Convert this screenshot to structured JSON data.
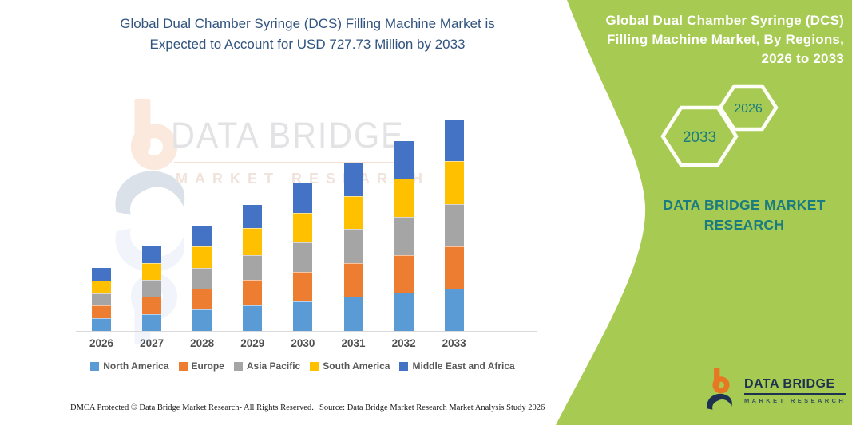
{
  "header": {
    "title_lines": [
      "Global Dual Chamber Syringe (DCS) Filling Machine Market is",
      "Expected to Account for USD 727.73 Million by 2033"
    ]
  },
  "right_panel": {
    "title_lines": [
      "Global Dual Chamber Syringe (DCS)",
      "Filling Machine Market, By Regions,",
      "2026 to 2033"
    ],
    "hexagons": {
      "back_label": "2033",
      "front_label": "2026"
    },
    "brand_text_lines": [
      "DATA BRIDGE MARKET",
      "RESEARCH"
    ]
  },
  "watermark": {
    "title": "DATA BRIDGE",
    "subtitle": "MARKET RESEARCH"
  },
  "logo": {
    "title": "DATA BRIDGE",
    "subtitle": "MARKET RESEARCH"
  },
  "footer": {
    "dmca": "DMCA Protected © Data Bridge Market Research-  All Rights Reserved.",
    "source": "Source: Data Bridge Market Research  Market Analysis Study 2026"
  },
  "colors": {
    "panel_green": "#A6CA52",
    "brand_teal": "#1A7B80",
    "headline_navy": "#31547F",
    "logo_navy": "#1E3250",
    "logo_orange": "#E87722",
    "axis_text": "#4F4F4F",
    "baseline_gray": "#D9D9D9"
  },
  "chart_data": {
    "type": "bar",
    "stacked": true,
    "title": "Global Dual Chamber Syringe (DCS) Filling Machine Market is Expected to Account for USD 727.73 Million by 2033",
    "xlabel": "",
    "ylabel": "",
    "unit": "USD Million (estimated from bar heights)",
    "ylim": [
      0,
      750
    ],
    "grid": false,
    "legend_position": "bottom",
    "categories": [
      "2026",
      "2027",
      "2028",
      "2029",
      "2030",
      "2031",
      "2032",
      "2033"
    ],
    "series": [
      {
        "name": "North America",
        "color": "#5B9BD5",
        "values": [
          44,
          59,
          74,
          87,
          103,
          118,
          131,
          146
        ]
      },
      {
        "name": "Europe",
        "color": "#ED7D31",
        "values": [
          43,
          60,
          72,
          89,
          101,
          116,
          131,
          146
        ]
      },
      {
        "name": "Asia Pacific",
        "color": "#A5A5A5",
        "values": [
          43,
          58,
          70,
          86,
          102,
          117,
          130,
          145
        ]
      },
      {
        "name": "South America",
        "color": "#FFC000",
        "values": [
          43,
          58,
          75,
          92,
          102,
          114,
          132,
          147
        ]
      },
      {
        "name": "Middle East and Africa",
        "color": "#4472C4",
        "values": [
          43,
          58,
          73,
          81,
          101,
          115,
          130,
          143.73
        ]
      }
    ],
    "totals_estimated": [
      216,
      293,
      364,
      435,
      509,
      580,
      654,
      727.73
    ]
  }
}
